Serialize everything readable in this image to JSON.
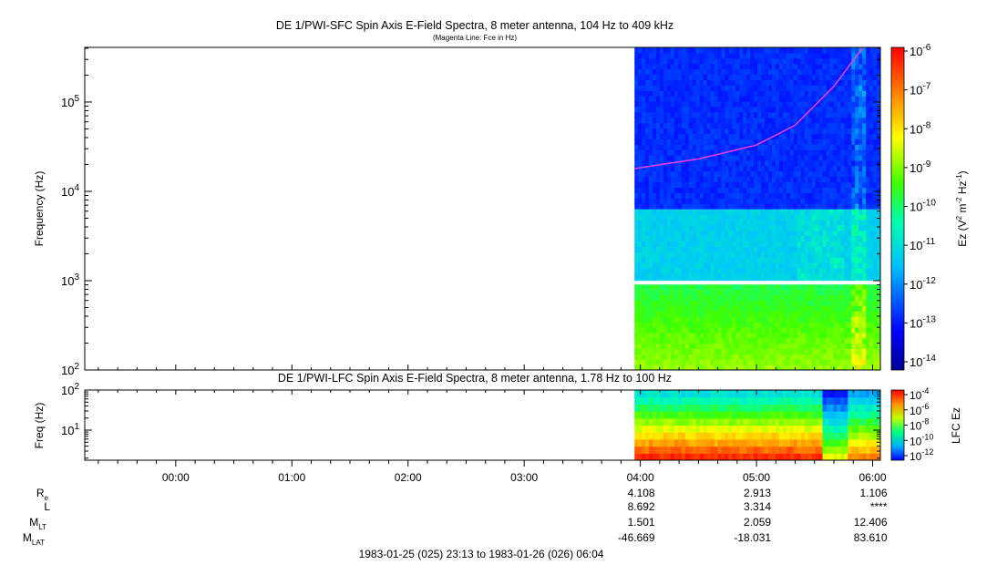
{
  "chart_data": [
    {
      "type": "heatmap",
      "title": "DE 1/PWI-SFC  Spin Axis E-Field Spectra, 8 meter antenna, 104 Hz to 409 kHz",
      "subtitle": "(Magenta Line: Fce in Hz)",
      "ylabel": "Frequency (Hz)",
      "yscale": "log",
      "ylim": [
        100,
        409000
      ],
      "y_ticks": [
        {
          "v": 100,
          "base": "10",
          "exp": "2"
        },
        {
          "v": 1000,
          "base": "10",
          "exp": "3"
        },
        {
          "v": 10000,
          "base": "10",
          "exp": "4"
        },
        {
          "v": 100000,
          "base": "10",
          "exp": "5"
        }
      ],
      "data_start": "03:57",
      "gap_frequency_hz": 950,
      "fce_line": {
        "color": "#e040e0",
        "points": [
          [
            "03:57",
            18000
          ],
          [
            "04:30",
            23000
          ],
          [
            "05:00",
            33000
          ],
          [
            "05:20",
            55000
          ],
          [
            "05:40",
            150000
          ],
          [
            "05:55",
            409000
          ]
        ]
      },
      "colorbar": {
        "label": "Ez (V2 m-2 Hz-1)",
        "label_base": "Ez (V",
        "label_parts": [
          "2",
          " m",
          "-2",
          " Hz",
          "-1",
          ")"
        ],
        "scale": "log",
        "range": [
          1e-14,
          1e-06
        ],
        "ticks": [
          {
            "base": "10",
            "exp": "-6"
          },
          {
            "base": "10",
            "exp": "-7"
          },
          {
            "base": "10",
            "exp": "-8"
          },
          {
            "base": "10",
            "exp": "-9"
          },
          {
            "base": "10",
            "exp": "-10"
          },
          {
            "base": "10",
            "exp": "-11"
          },
          {
            "base": "10",
            "exp": "-12"
          },
          {
            "base": "10",
            "exp": "-13"
          },
          {
            "base": "10",
            "exp": "-14"
          }
        ]
      }
    },
    {
      "type": "heatmap",
      "title": "DE 1/PWI-LFC  Spin Axis E-Field Spectra, 8 meter antenna, 1.78 Hz to 100 Hz",
      "ylabel": "Freq (Hz)",
      "yscale": "log",
      "ylim": [
        1.78,
        100
      ],
      "y_ticks": [
        {
          "v": 10,
          "base": "10",
          "exp": "1"
        },
        {
          "v": 100,
          "base": "10",
          "exp": "2"
        }
      ],
      "data_start": "03:57",
      "colorbar": {
        "label": "LFC Ez",
        "scale": "log",
        "range": [
          1e-12,
          0.0001
        ],
        "ticks": [
          {
            "base": "10",
            "exp": "-4"
          },
          {
            "base": "10",
            "exp": "-6"
          },
          {
            "base": "10",
            "exp": "-8"
          },
          {
            "base": "10",
            "exp": "-10"
          },
          {
            "base": "10",
            "exp": "-12"
          }
        ]
      }
    }
  ],
  "time_axis": {
    "start": "23:13",
    "end": "06:04",
    "ticks": [
      "00:00",
      "01:00",
      "02:00",
      "03:00",
      "04:00",
      "05:00",
      "06:00"
    ]
  },
  "ephemeris": {
    "rows": [
      {
        "name": "R",
        "sub": "e",
        "values": [
          "4.108",
          "2.913",
          "1.106"
        ]
      },
      {
        "name": "L",
        "sub": "",
        "values": [
          "8.692",
          "3.314",
          "****"
        ]
      },
      {
        "name": "M",
        "sub": "LT",
        "values": [
          "1.501",
          "2.059",
          "12.406"
        ]
      },
      {
        "name": "M",
        "sub": "LAT",
        "values": [
          "-46.669",
          "-18.031",
          "83.610"
        ]
      }
    ],
    "at_ticks": [
      "04:00",
      "05:00",
      "06:00"
    ]
  },
  "footer": "1983-01-25 (025) 23:13 to 1983-01-26 (026) 06:04",
  "colors": {
    "fce": "#e040e0",
    "gap": "#ffffff",
    "frame": "#000000"
  }
}
